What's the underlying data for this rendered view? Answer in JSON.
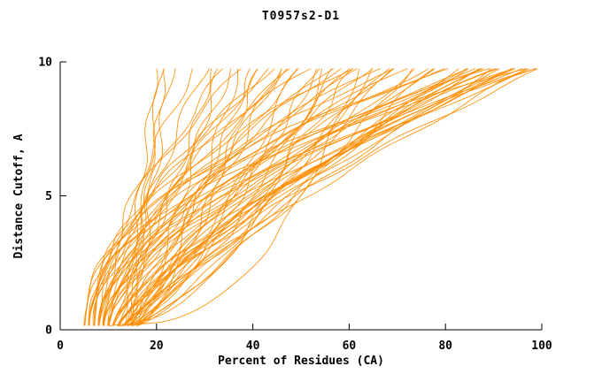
{
  "chart_data": {
    "type": "line",
    "title": "T0957s2-D1",
    "xlabel": "Percent of Residues (CA)",
    "ylabel": "Distance Cutoff, A",
    "xlim": [
      0,
      100
    ],
    "ylim": [
      0,
      10
    ],
    "x_ticks": [
      0,
      20,
      40,
      60,
      80,
      100
    ],
    "y_ticks": [
      0,
      5,
      10
    ],
    "grid": false,
    "legend": "none",
    "line_color": "#FF8C00",
    "axis_color": "#000000",
    "background": "#ffffff",
    "curve_model": "x(y) = x0 + (x1-x0)*t^q + amp*sin(freq*y+phase), t=(y-y_start)/(y_end-y_start); each curve = [x0, x1, q, amp, freq, phase]",
    "y_start": 0.15,
    "y_end": 9.75,
    "curves": [
      [
        13.5,
        20,
        1.15,
        0.7,
        2.2,
        0.5
      ],
      [
        14.5,
        21,
        1.05,
        0.8,
        1.8,
        2.1
      ],
      [
        15,
        22,
        1.25,
        0.6,
        2.6,
        4.0
      ],
      [
        15.5,
        23,
        1.1,
        0.9,
        2.0,
        1.2
      ],
      [
        8,
        28,
        1.5,
        0.8,
        2.3,
        0.3
      ],
      [
        10,
        30,
        1.2,
        1.0,
        1.9,
        1.7
      ],
      [
        12,
        32,
        0.9,
        0.7,
        2.7,
        3.1
      ],
      [
        9,
        34,
        1.6,
        0.9,
        2.1,
        4.4
      ],
      [
        11,
        36,
        1.1,
        0.8,
        2.4,
        5.6
      ],
      [
        7,
        38,
        1.8,
        1.0,
        1.8,
        0.9
      ],
      [
        13,
        40,
        0.8,
        0.7,
        2.9,
        2.2
      ],
      [
        10,
        42,
        1.4,
        1.1,
        2.0,
        3.6
      ],
      [
        8,
        44,
        1.7,
        0.8,
        2.5,
        5.0
      ],
      [
        12,
        46,
        1.0,
        0.9,
        2.2,
        0.6
      ],
      [
        9,
        48,
        1.5,
        1.0,
        1.7,
        1.9
      ],
      [
        11,
        50,
        1.2,
        0.7,
        2.8,
        3.3
      ],
      [
        6,
        52,
        1.9,
        0.9,
        2.1,
        4.7
      ],
      [
        13,
        54,
        0.85,
        0.8,
        2.4,
        5.9
      ],
      [
        10,
        56,
        1.45,
        1.1,
        1.9,
        1.1
      ],
      [
        8,
        58,
        1.7,
        0.7,
        2.6,
        2.5
      ],
      [
        12,
        60,
        1.05,
        1.0,
        2.2,
        3.9
      ],
      [
        9,
        62,
        1.55,
        0.8,
        2.0,
        5.2
      ],
      [
        11,
        64,
        1.25,
        0.9,
        2.7,
        0.4
      ],
      [
        7,
        66,
        1.85,
        1.0,
        1.8,
        1.8
      ],
      [
        13,
        68,
        0.95,
        0.7,
        2.3,
        3.2
      ],
      [
        10,
        70,
        1.5,
        1.1,
        2.5,
        4.6
      ],
      [
        8,
        72,
        1.75,
        0.8,
        2.0,
        5.8
      ],
      [
        12,
        74,
        1.15,
        0.9,
        2.2,
        1.0
      ],
      [
        9,
        76,
        1.6,
        1.0,
        2.6,
        2.4
      ],
      [
        11,
        78,
        1.3,
        0.7,
        1.9,
        3.8
      ],
      [
        6,
        80,
        2.0,
        0.9,
        2.4,
        5.1
      ],
      [
        13,
        82,
        1.0,
        0.8,
        2.1,
        0.2
      ],
      [
        10,
        84,
        1.55,
        1.1,
        2.7,
        1.6
      ],
      [
        8,
        85,
        1.8,
        0.7,
        2.0,
        3.0
      ],
      [
        12,
        86,
        1.2,
        1.0,
        2.3,
        4.4
      ],
      [
        9,
        87,
        1.65,
        0.8,
        2.5,
        5.7
      ],
      [
        11,
        88,
        1.35,
        0.9,
        1.8,
        0.8
      ],
      [
        7,
        89,
        1.95,
        1.0,
        2.2,
        2.2
      ],
      [
        13,
        90,
        1.1,
        0.7,
        2.6,
        3.6
      ],
      [
        10,
        91,
        1.6,
        0.9,
        2.0,
        5.0
      ],
      [
        8,
        92,
        1.85,
        1.1,
        2.4,
        0.1
      ],
      [
        12,
        93,
        1.25,
        0.8,
        1.9,
        1.5
      ],
      [
        9,
        94,
        1.7,
        1.0,
        2.3,
        2.9
      ],
      [
        11,
        95,
        1.4,
        0.7,
        2.7,
        4.3
      ],
      [
        6,
        96,
        2.1,
        0.9,
        2.1,
        5.6
      ],
      [
        13,
        97,
        1.15,
        0.8,
        2.5,
        0.7
      ],
      [
        10,
        98,
        1.65,
        1.0,
        1.8,
        2.1
      ],
      [
        8,
        99,
        1.9,
        0.7,
        2.2,
        3.5
      ],
      [
        12,
        100,
        1.3,
        0.9,
        2.6,
        4.9
      ],
      [
        14,
        33,
        0.75,
        0.8,
        2.4,
        1.3
      ],
      [
        15,
        37,
        0.7,
        0.9,
        2.0,
        2.7
      ],
      [
        16,
        41,
        0.72,
        0.7,
        2.8,
        4.1
      ],
      [
        14,
        45,
        0.78,
        1.0,
        2.2,
        5.5
      ],
      [
        15,
        49,
        0.74,
        0.8,
        1.9,
        0.6
      ],
      [
        16,
        53,
        0.8,
        0.9,
        2.5,
        2.0
      ],
      [
        14,
        57,
        0.76,
        0.7,
        2.1,
        3.4
      ],
      [
        15,
        61,
        0.82,
        1.0,
        2.7,
        4.8
      ],
      [
        16,
        65,
        0.78,
        0.8,
        2.3,
        0.0
      ],
      [
        14,
        69,
        0.85,
        0.9,
        1.8,
        1.4
      ],
      [
        15,
        73,
        0.8,
        0.7,
        2.6,
        2.8
      ],
      [
        16,
        77,
        0.88,
        1.0,
        2.2,
        4.2
      ],
      [
        5,
        81,
        2.2,
        0.8,
        2.4,
        5.5
      ],
      [
        5,
        60,
        1.9,
        0.9,
        2.0,
        0.9
      ],
      [
        6,
        70,
        2.0,
        0.7,
        2.8,
        2.3
      ],
      [
        7,
        90,
        2.15,
        1.0,
        2.1,
        3.7
      ],
      [
        14,
        92,
        1.45,
        0.8,
        2.5,
        5.1
      ],
      [
        15,
        94,
        1.5,
        0.9,
        1.9,
        0.3
      ],
      [
        16,
        96,
        1.55,
        0.7,
        2.4,
        1.7
      ],
      [
        14,
        98,
        1.6,
        1.0,
        2.0,
        3.1
      ],
      [
        15,
        88,
        1.35,
        0.8,
        2.6,
        4.5
      ],
      [
        16,
        84,
        1.28,
        0.9,
        2.2,
        5.9
      ],
      [
        5,
        44,
        1.6,
        0.7,
        2.7,
        1.1
      ],
      [
        6,
        48,
        1.5,
        1.0,
        2.1,
        2.5
      ],
      [
        10,
        55,
        0.45,
        0.6,
        2.3,
        1.0
      ],
      [
        12,
        62,
        0.4,
        0.6,
        2.0,
        2.4
      ]
    ]
  }
}
